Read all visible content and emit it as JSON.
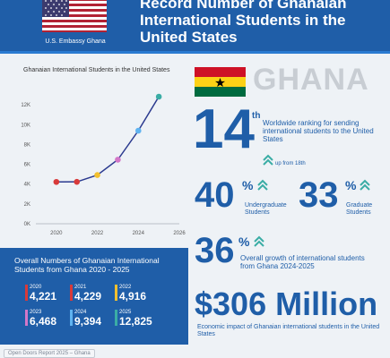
{
  "header": {
    "embassy_label": "U.S. Embassy Ghana",
    "title": "Record Number of Ghanaian International Students in the United States",
    "bg_color": "#1f5ea8"
  },
  "chart_data": {
    "type": "line",
    "title": "Ghanaian International Students in the United States",
    "xlabel": "",
    "ylabel": "",
    "x": [
      2020,
      2021,
      2022,
      2023,
      2024,
      2025
    ],
    "values": [
      4221,
      4229,
      4916,
      6468,
      9394,
      12825
    ],
    "point_colors": [
      "#d83a3a",
      "#d83a3a",
      "#f2c02f",
      "#d277c8",
      "#5fb3f0",
      "#3aada5"
    ],
    "xlim": [
      2019,
      2026
    ],
    "ylim": [
      0,
      14000
    ],
    "x_ticks": [
      "2020",
      "2022",
      "2024",
      "2026"
    ],
    "y_ticks": [
      "0K",
      "2K",
      "4K",
      "6K",
      "8K",
      "10K",
      "12K"
    ],
    "grid": false
  },
  "summary": {
    "title": "Overall Numbers of Ghanaian International Students from Ghana 2020 - 2025",
    "items": [
      {
        "year": "2020",
        "value": "4,221",
        "color": "#d83a3a"
      },
      {
        "year": "2021",
        "value": "4,229",
        "color": "#d83a3a"
      },
      {
        "year": "2022",
        "value": "4,916",
        "color": "#f2c02f"
      },
      {
        "year": "2023",
        "value": "6,468",
        "color": "#d277c8"
      },
      {
        "year": "2024",
        "value": "9,394",
        "color": "#5fb3f0"
      },
      {
        "year": "2025",
        "value": "12,825",
        "color": "#3aada5"
      }
    ]
  },
  "country": "GHANA",
  "stats": {
    "rank_number": "14",
    "rank_suffix": "th",
    "rank_text": "Worldwide ranking for sending international students to the United States",
    "rank_change": "up from 18th",
    "undergrad_value": "40",
    "undergrad_label": "Undergraduate Students",
    "grad_value": "33",
    "grad_label": "Graduate Students",
    "growth_value": "36",
    "growth_label": "Overall growth of international students from Ghana 2024-2025",
    "impact_value": "$306 Million",
    "impact_label": "Economic impact of Ghanaian international students in the United States",
    "percent": "%"
  },
  "footer": {
    "source": "Open Doors Report 2025 – Ghana"
  },
  "icons": {
    "up_arrow": "double-chevron-up-icon"
  },
  "colors": {
    "accent": "#1f5ea8",
    "teal": "#3aada5"
  }
}
